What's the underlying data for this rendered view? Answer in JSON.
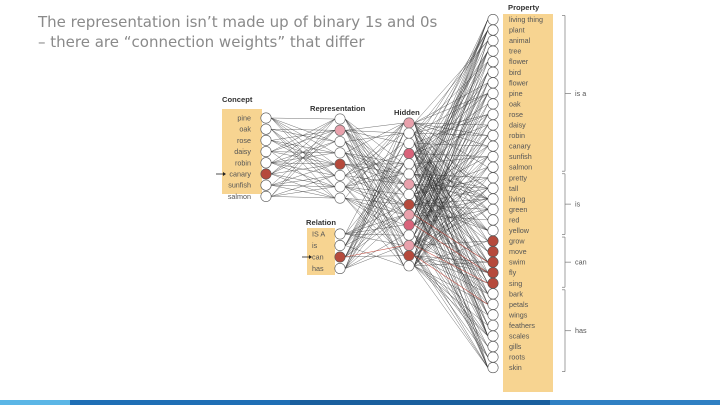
{
  "slide": {
    "text": "The representation isn’t made up of binary 1s and 0s – there are “connection weights” that differ"
  },
  "diagram": {
    "concept_header": "Concept",
    "concepts": [
      "pine",
      "oak",
      "rose",
      "daisy",
      "robin",
      "canary",
      "sunfish",
      "salmon"
    ],
    "representation_header": "Representation",
    "hidden_header": "Hidden",
    "relation_header": "Relation",
    "relations": [
      "IS A",
      "is",
      "can",
      "has"
    ],
    "property_header": "Property",
    "property_groups": [
      {
        "label": "is a",
        "items": [
          "living thing",
          "plant",
          "animal",
          "tree",
          "flower",
          "bird",
          "flower",
          "pine",
          "oak",
          "rose",
          "daisy",
          "robin",
          "canary",
          "sunfish",
          "salmon"
        ]
      },
      {
        "label": "is",
        "items": [
          "pretty",
          "tall",
          "living",
          "green",
          "red",
          "yellow"
        ]
      },
      {
        "label": "can",
        "items": [
          "grow",
          "move",
          "swim",
          "fly",
          "sing"
        ]
      },
      {
        "label": "has",
        "items": [
          "bark",
          "petals",
          "wings",
          "feathers",
          "scales",
          "gills",
          "roots",
          "skin"
        ]
      }
    ],
    "active_concept": "canary",
    "active_relation": "can",
    "active_properties": [
      "grow",
      "move",
      "swim",
      "fly",
      "sing"
    ],
    "colors": {
      "panel": "#f7d491",
      "active": "#b64a3c",
      "pink": "#e9a1ac",
      "pink_dark": "#d9637a",
      "edge": "#2a2a2a",
      "edge_red": "#c0392b"
    }
  },
  "footer_colors": [
    "#5bb6e6",
    "#1f6fb5",
    "#1a5f9e",
    "#2f80c3"
  ]
}
